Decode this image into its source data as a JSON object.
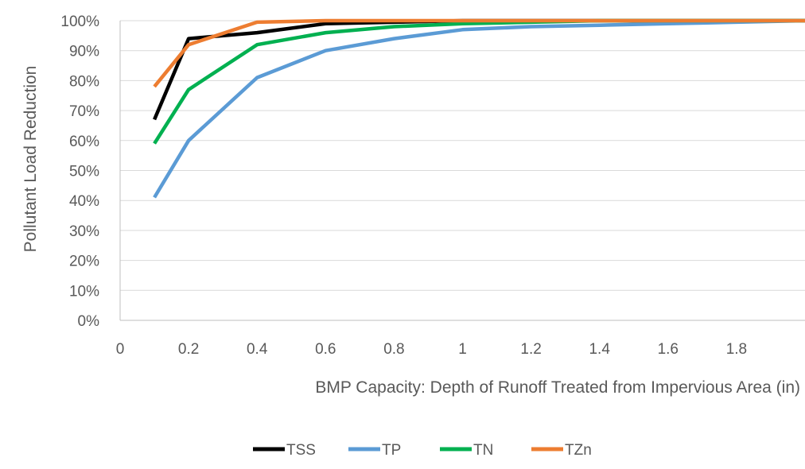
{
  "chart_data": {
    "type": "line",
    "xlabel": "BMP Capacity: Depth of Runoff Treated from Impervious Area (in)",
    "ylabel": "Pollutant Load Reduction",
    "xlim": [
      0,
      2.0
    ],
    "ylim": [
      0,
      1.0
    ],
    "x_ticks": [
      "0",
      "0.2",
      "0.4",
      "0.6",
      "0.8",
      "1",
      "1.2",
      "1.4",
      "1.6",
      "1.8"
    ],
    "y_ticks": [
      "0%",
      "10%",
      "20%",
      "30%",
      "40%",
      "50%",
      "60%",
      "70%",
      "80%",
      "90%",
      "100%"
    ],
    "grid": "horizontal",
    "legend_position": "bottom",
    "series": [
      {
        "name": "TSS",
        "color": "#000000",
        "x": [
          0.1,
          0.2,
          0.4,
          0.6,
          0.8,
          1.0,
          1.2,
          1.4,
          1.6,
          1.8,
          2.0
        ],
        "y": [
          0.67,
          0.94,
          0.96,
          0.99,
          0.995,
          1.0,
          1.0,
          1.0,
          1.0,
          1.0,
          1.0
        ]
      },
      {
        "name": "TP",
        "color": "#5B9BD5",
        "x": [
          0.1,
          0.2,
          0.4,
          0.6,
          0.8,
          1.0,
          1.2,
          1.4,
          1.6,
          1.8,
          2.0
        ],
        "y": [
          0.41,
          0.6,
          0.81,
          0.9,
          0.94,
          0.97,
          0.98,
          0.985,
          0.99,
          0.995,
          1.0
        ]
      },
      {
        "name": "TN",
        "color": "#00B050",
        "x": [
          0.1,
          0.2,
          0.4,
          0.6,
          0.8,
          1.0,
          1.2,
          1.4,
          1.6,
          1.8,
          2.0
        ],
        "y": [
          0.59,
          0.77,
          0.92,
          0.96,
          0.98,
          0.99,
          0.995,
          1.0,
          1.0,
          1.0,
          1.0
        ]
      },
      {
        "name": "TZn",
        "color": "#ED7D31",
        "x": [
          0.1,
          0.2,
          0.4,
          0.6,
          0.8,
          1.0,
          1.2,
          1.4,
          1.6,
          1.8,
          2.0
        ],
        "y": [
          0.78,
          0.92,
          0.995,
          1.0,
          1.0,
          1.0,
          1.0,
          1.0,
          1.0,
          1.0,
          1.0
        ]
      }
    ]
  }
}
